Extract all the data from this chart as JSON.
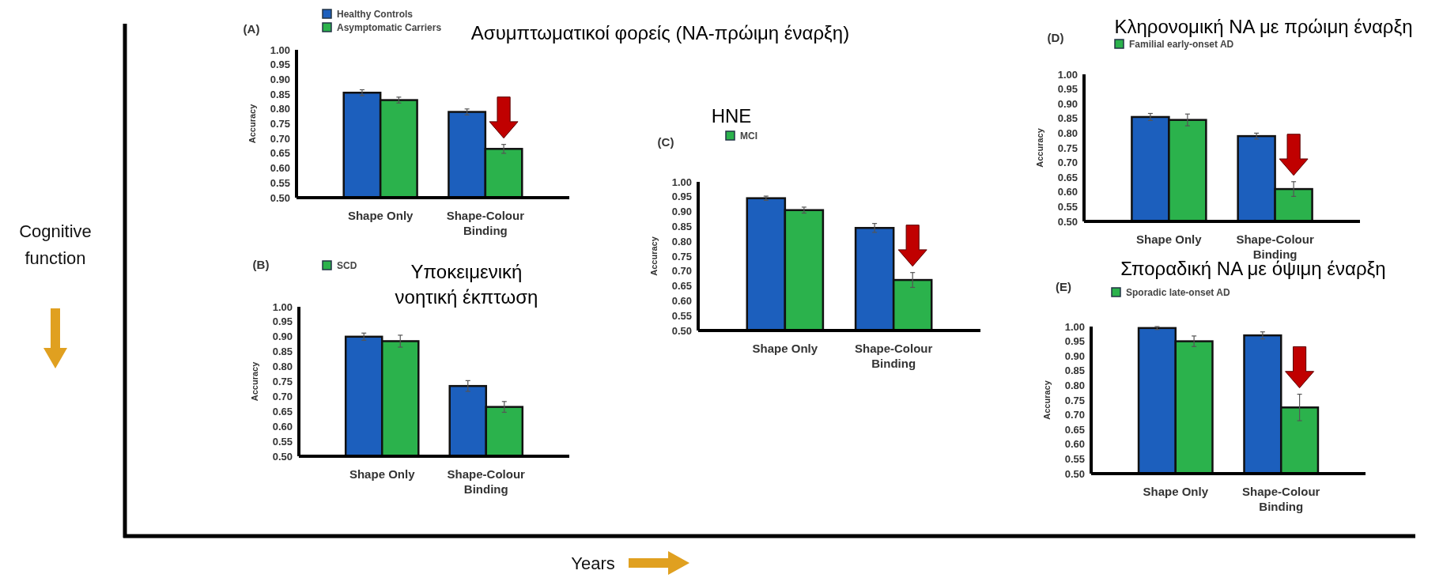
{
  "chart_data": [
    {
      "type": "bar",
      "title": "(A)",
      "subtitle": "Ασυμπτωματικοί φορείς (ΝΑ-πρώιμη έναρξη)",
      "ylabel": "Accuracy",
      "categories": [
        "Shape Only",
        "Shape-Colour Binding"
      ],
      "legend": "top left",
      "ylim": [
        0.5,
        1.0
      ],
      "yticks": [
        {
          "value": 0.5,
          "label": "0.50"
        },
        {
          "value": 0.55,
          "label": "0.55"
        },
        {
          "value": 0.6,
          "label": "0.60"
        },
        {
          "value": 0.65,
          "label": "0.65"
        },
        {
          "value": 0.7,
          "label": "0.70"
        },
        {
          "value": 0.75,
          "label": "0.75"
        },
        {
          "value": 0.8,
          "label": "0.80"
        },
        {
          "value": 0.85,
          "label": "0.85"
        },
        {
          "value": 0.9,
          "label": "0.90"
        },
        {
          "value": 0.95,
          "label": "0.95"
        },
        {
          "value": 1.0,
          "label": "1.00"
        }
      ],
      "series": [
        {
          "name": "Healthy Controls",
          "color": "#1c5fbd",
          "values": [
            0.855,
            0.79
          ],
          "errors": [
            0.01,
            0.01
          ]
        },
        {
          "name": "Asymptomatic Carriers",
          "color": "#2bb24c",
          "values": [
            0.83,
            0.665
          ],
          "errors": [
            0.01,
            0.015
          ]
        }
      ]
    },
    {
      "type": "bar",
      "title": "(B)",
      "subtitle": "Υποκειμενική νοητική έκπτωση",
      "ylabel": "Accuracy",
      "categories": [
        "Shape Only",
        "Shape-Colour Binding"
      ],
      "legend": "top left",
      "ylim": [
        0.5,
        1.0
      ],
      "yticks": [
        {
          "value": 0.5,
          "label": "0.50"
        },
        {
          "value": 0.55,
          "label": "0.55"
        },
        {
          "value": 0.6,
          "label": "0.60"
        },
        {
          "value": 0.65,
          "label": "0.65"
        },
        {
          "value": 0.7,
          "label": "0.70"
        },
        {
          "value": 0.75,
          "label": "0.75"
        },
        {
          "value": 0.8,
          "label": "0.80"
        },
        {
          "value": 0.85,
          "label": "0.85"
        },
        {
          "value": 0.9,
          "label": "0.90"
        },
        {
          "value": 0.95,
          "label": "0.95"
        },
        {
          "value": 1.0,
          "label": "1.00"
        }
      ],
      "series": [
        {
          "color": "#1c5fbd",
          "values": [
            0.9,
            0.735
          ],
          "errors": [
            0.012,
            0.018
          ]
        },
        {
          "name": "SCD",
          "color": "#2bb24c",
          "values": [
            0.885,
            0.665
          ],
          "errors": [
            0.02,
            0.018
          ]
        }
      ]
    },
    {
      "type": "bar",
      "title": "(C)",
      "subtitle": "ΗΝΕ",
      "ylabel": "Accuracy",
      "categories": [
        "Shape Only",
        "Shape-Colour Binding"
      ],
      "legend": "top left",
      "ylim": [
        0.5,
        1.0
      ],
      "yticks": [
        {
          "value": 0.5,
          "label": "0.50"
        },
        {
          "value": 0.55,
          "label": "0.55"
        },
        {
          "value": 0.6,
          "label": "0.60"
        },
        {
          "value": 0.65,
          "label": "0.65"
        },
        {
          "value": 0.7,
          "label": "0.70"
        },
        {
          "value": 0.75,
          "label": "0.75"
        },
        {
          "value": 0.8,
          "label": "0.80"
        },
        {
          "value": 0.85,
          "label": "0.85"
        },
        {
          "value": 0.9,
          "label": "0.90"
        },
        {
          "value": 0.95,
          "label": "0.95"
        },
        {
          "value": 1.0,
          "label": "1.00"
        }
      ],
      "series": [
        {
          "color": "#1c5fbd",
          "values": [
            0.945,
            0.845
          ],
          "errors": [
            0.007,
            0.015
          ]
        },
        {
          "name": "MCI",
          "color": "#2bb24c",
          "values": [
            0.905,
            0.67
          ],
          "errors": [
            0.01,
            0.025
          ]
        }
      ]
    },
    {
      "type": "bar",
      "title": "(D)",
      "subtitle": "Κληρονομική ΝΑ με πρώιμη έναρξη",
      "ylabel": "Accuracy",
      "categories": [
        "Shape Only",
        "Shape-Colour Binding"
      ],
      "legend": "top left",
      "ylim": [
        0.5,
        1.0
      ],
      "yticks": [
        {
          "value": 0.5,
          "label": "0.50"
        },
        {
          "value": 0.55,
          "label": "0.55"
        },
        {
          "value": 0.6,
          "label": "0.60"
        },
        {
          "value": 0.65,
          "label": "0.65"
        },
        {
          "value": 0.7,
          "label": "0.70"
        },
        {
          "value": 0.75,
          "label": "0.75"
        },
        {
          "value": 0.8,
          "label": "0.80"
        },
        {
          "value": 0.85,
          "label": "0.85"
        },
        {
          "value": 0.9,
          "label": "0.90"
        },
        {
          "value": 0.95,
          "label": "0.95"
        },
        {
          "value": 1.0,
          "label": "1.00"
        }
      ],
      "series": [
        {
          "color": "#1c5fbd",
          "values": [
            0.855,
            0.79
          ],
          "errors": [
            0.012,
            0.01
          ]
        },
        {
          "name": "Familial early-onset AD",
          "color": "#2bb24c",
          "values": [
            0.845,
            0.61
          ],
          "errors": [
            0.02,
            0.025
          ]
        }
      ]
    },
    {
      "type": "bar",
      "title": "(E)",
      "subtitle": "Σποραδική ΝΑ με όψιμη έναρξη",
      "ylabel": "Accuracy",
      "categories": [
        "Shape Only",
        "Shape-Colour Binding"
      ],
      "legend": "top left",
      "ylim": [
        0.5,
        1.0
      ],
      "yticks": [
        {
          "value": 0.5,
          "label": "0.50"
        },
        {
          "value": 0.55,
          "label": "0.55"
        },
        {
          "value": 0.6,
          "label": "0.60"
        },
        {
          "value": 0.65,
          "label": "0.65"
        },
        {
          "value": 0.7,
          "label": "0.70"
        },
        {
          "value": 0.75,
          "label": "0.75"
        },
        {
          "value": 0.8,
          "label": "0.80"
        },
        {
          "value": 0.85,
          "label": "0.85"
        },
        {
          "value": 0.9,
          "label": "0.90"
        },
        {
          "value": 0.95,
          "label": "0.95"
        },
        {
          "value": 1.0,
          "label": "1.00"
        }
      ],
      "series": [
        {
          "color": "#1c5fbd",
          "values": [
            0.995,
            0.97
          ],
          "errors": [
            0.005,
            0.012
          ]
        },
        {
          "name": "Sporadic late-onset AD",
          "color": "#2bb24c",
          "values": [
            0.95,
            0.725
          ],
          "errors": [
            0.018,
            0.045
          ]
        }
      ]
    },
    {
      "type": "other",
      "xlabel": "Years",
      "ylabel": "Cognitive function"
    }
  ]
}
